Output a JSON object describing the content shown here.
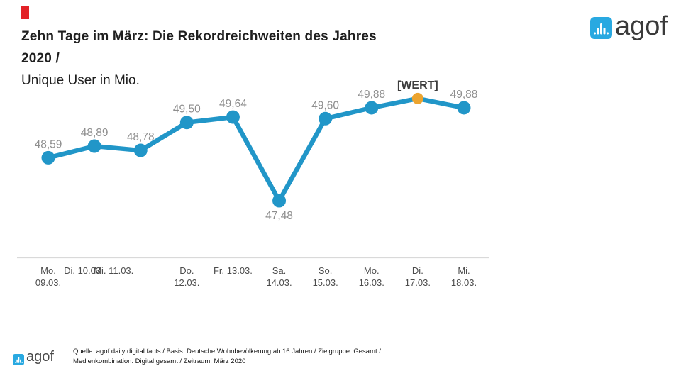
{
  "title": {
    "line1": "Zehn Tage im März: Die Rekordreichweiten des Jahres",
    "line2": "2020 /",
    "subtitle": "Unique User in Mio."
  },
  "logo": {
    "text": "agof",
    "brand_blue": "#29a9e1"
  },
  "chart_data": {
    "type": "line",
    "title": "Zehn Tage im März: Die Rekordreichweiten des Jahres 2020",
    "ylabel": "Unique User in Mio.",
    "categories": [
      "Mo. 09.03.",
      "Di. 10.03",
      "Mi. 11.03.",
      "Do. 12.03.",
      "Fr. 13.03.",
      "Sa. 14.03.",
      "So. 15.03.",
      "Mo. 16.03.",
      "Di. 17.03.",
      "Mi. 18.03."
    ],
    "category_lines": [
      [
        "Mo.",
        "09.03."
      ],
      [
        "Di. 10.03",
        ""
      ],
      [
        "Mi. 11.03.",
        ""
      ],
      [
        "Do.",
        "12.03."
      ],
      [
        "Fr. 13.03.",
        ""
      ],
      [
        "Sa.",
        "14.03."
      ],
      [
        "So.",
        "15.03."
      ],
      [
        "Mo.",
        "16.03."
      ],
      [
        "Di.",
        "17.03."
      ],
      [
        "Mi.",
        "18.03."
      ]
    ],
    "values": [
      48.59,
      48.89,
      48.78,
      49.5,
      49.64,
      47.48,
      49.6,
      49.88,
      null,
      49.88
    ],
    "point_labels": [
      "48,59",
      "48,89",
      "48,78",
      "49,50",
      "49,64",
      "47,48",
      "49,60",
      "49,88",
      "[WERT]",
      "49,88"
    ],
    "highlight_point_index": 8,
    "line_color": "#2196c8",
    "highlight_color": "#eca42f",
    "label_color": "#8e8e8e",
    "wert_label_color": "#3d3d3d",
    "axis_line_color": "#d9d9d9",
    "ylim": [
      47,
      50.5
    ],
    "grid": false,
    "legend": false
  },
  "footer": {
    "logo_text": "agof",
    "source_line1": "Quelle: agof daily digital facts / Basis: Deutsche Wohnbevölkerung ab 16 Jahren / Zielgruppe: Gesamt /",
    "source_line2": "Medienkombination: Digital gesamt / Zeitraum: März 2020"
  }
}
